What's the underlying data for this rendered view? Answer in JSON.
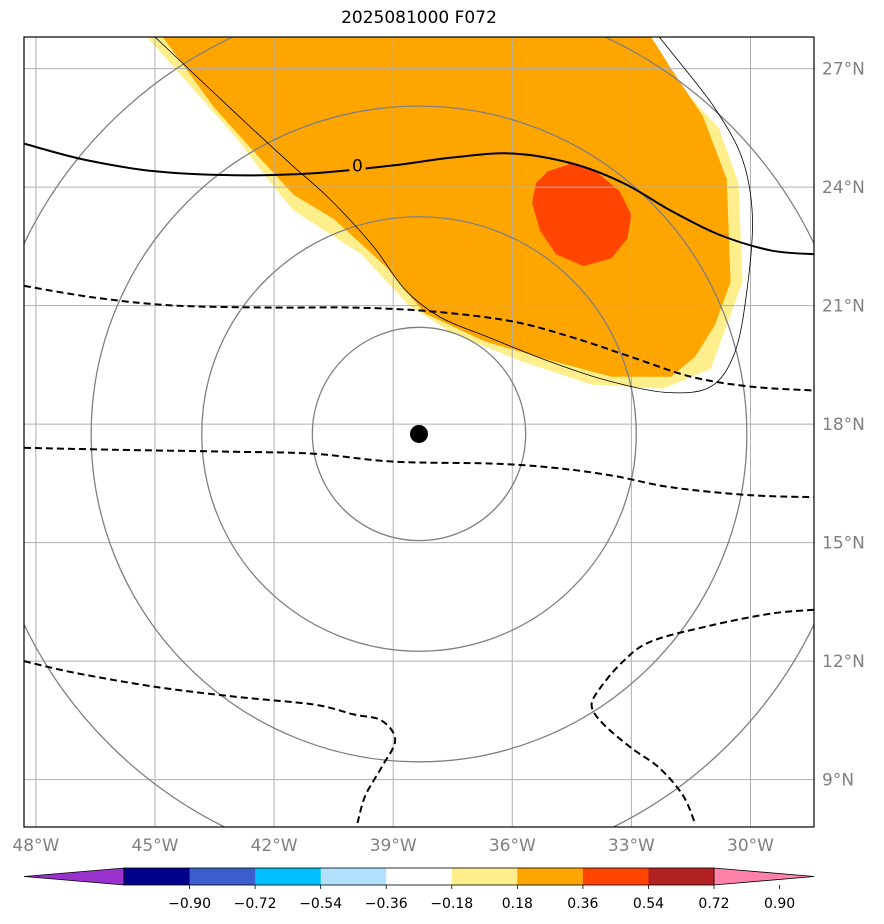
{
  "title": "2025081000 F072",
  "map": {
    "lon_range": [
      -48.3,
      -28.4
    ],
    "lat_range": [
      7.8,
      27.8
    ],
    "lat_ticks": [
      {
        "value": 27,
        "label": "27°N"
      },
      {
        "value": 24,
        "label": "24°N"
      },
      {
        "value": 21,
        "label": "21°N"
      },
      {
        "value": 18,
        "label": "18°N"
      },
      {
        "value": 15,
        "label": "15°N"
      },
      {
        "value": 12,
        "label": "12°N"
      },
      {
        "value": 9,
        "label": "9°N"
      }
    ],
    "lon_ticks": [
      {
        "value": -48,
        "label": "48°W"
      },
      {
        "value": -45,
        "label": "45°W"
      },
      {
        "value": -42,
        "label": "42°W"
      },
      {
        "value": -39,
        "label": "39°W"
      },
      {
        "value": -36,
        "label": "36°W"
      },
      {
        "value": -33,
        "label": "33°W"
      },
      {
        "value": -30,
        "label": "30°W"
      }
    ],
    "storm_center": {
      "lon": -38.35,
      "lat": 17.75
    },
    "range_rings_deg": [
      2.7,
      5.5,
      8.3,
      11.1
    ],
    "contour_zero_label": "0",
    "colors": {
      "grid": "#b0b0b0",
      "ring": "#808080",
      "fill_light": "#ffee8c",
      "fill_orange": "#ffa500",
      "fill_red": "#ff4500"
    },
    "fill_regions": [
      {
        "name": "light",
        "color": "#ffee8c",
        "points": [
          [
            -45.2,
            27.8
          ],
          [
            -36.2,
            27.8
          ],
          [
            -35.5,
            27.8
          ],
          [
            -32.5,
            27.8
          ],
          [
            -32.0,
            26.8
          ],
          [
            -30.8,
            25.5
          ],
          [
            -30.3,
            24.1
          ],
          [
            -30.2,
            21.6
          ],
          [
            -30.6,
            20.5
          ],
          [
            -31.0,
            19.4
          ],
          [
            -32.2,
            18.9
          ],
          [
            -34.0,
            19.0
          ],
          [
            -35.8,
            19.6
          ],
          [
            -37.5,
            20.3
          ],
          [
            -38.6,
            21.0
          ],
          [
            -39.8,
            22.3
          ],
          [
            -41.5,
            23.4
          ],
          [
            -42.0,
            24.0
          ],
          [
            -43.0,
            25.3
          ],
          [
            -45.2,
            27.8
          ]
        ]
      },
      {
        "name": "orange",
        "color": "#ffa500",
        "points": [
          [
            -44.8,
            27.8
          ],
          [
            -32.5,
            27.8
          ],
          [
            -32.0,
            27.0
          ],
          [
            -31.2,
            25.8
          ],
          [
            -30.6,
            24.2
          ],
          [
            -30.5,
            21.6
          ],
          [
            -30.9,
            20.5
          ],
          [
            -31.4,
            19.7
          ],
          [
            -32.0,
            19.2
          ],
          [
            -33.5,
            19.2
          ],
          [
            -35.0,
            19.6
          ],
          [
            -36.7,
            20.1
          ],
          [
            -38.2,
            20.8
          ],
          [
            -39.2,
            22.0
          ],
          [
            -40.5,
            23.2
          ],
          [
            -41.5,
            23.8
          ],
          [
            -42.6,
            25.0
          ],
          [
            -43.5,
            26.0
          ],
          [
            -44.8,
            27.8
          ]
        ]
      },
      {
        "name": "red",
        "color": "#ff4500",
        "points": [
          [
            -35.1,
            24.4
          ],
          [
            -34.5,
            24.6
          ],
          [
            -33.9,
            24.4
          ],
          [
            -33.3,
            23.9
          ],
          [
            -33.0,
            23.3
          ],
          [
            -33.1,
            22.7
          ],
          [
            -33.5,
            22.2
          ],
          [
            -34.2,
            22.0
          ],
          [
            -34.9,
            22.3
          ],
          [
            -35.3,
            22.9
          ],
          [
            -35.5,
            23.6
          ],
          [
            -35.4,
            24.1
          ],
          [
            -35.1,
            24.4
          ]
        ]
      }
    ],
    "outline": [
      [
        -45.0,
        27.8
      ],
      [
        -43.0,
        25.9
      ],
      [
        -41.6,
        24.6
      ],
      [
        -40.6,
        23.7
      ],
      [
        -39.5,
        22.5
      ],
      [
        -38.7,
        21.4
      ],
      [
        -37.8,
        20.7
      ],
      [
        -36.6,
        20.2
      ],
      [
        -35.1,
        19.6
      ],
      [
        -33.6,
        19.1
      ],
      [
        -32.1,
        18.8
      ],
      [
        -31.0,
        18.95
      ],
      [
        -30.4,
        19.8
      ],
      [
        -30.1,
        21.3
      ],
      [
        -29.95,
        23.2
      ],
      [
        -30.2,
        24.7
      ],
      [
        -30.9,
        26.0
      ],
      [
        -31.9,
        27.3
      ],
      [
        -32.3,
        27.8
      ]
    ],
    "zero_contour": [
      [
        -48.3,
        25.1
      ],
      [
        -46.8,
        24.7
      ],
      [
        -45.0,
        24.4
      ],
      [
        -43.0,
        24.3
      ],
      [
        -41.0,
        24.35
      ],
      [
        -39.0,
        24.55
      ],
      [
        -37.5,
        24.75
      ],
      [
        -36.0,
        24.85
      ],
      [
        -34.5,
        24.6
      ],
      [
        -33.2,
        24.1
      ],
      [
        -32.0,
        23.4
      ],
      [
        -30.8,
        22.8
      ],
      [
        -29.5,
        22.4
      ],
      [
        -28.4,
        22.3
      ]
    ],
    "dashed_contours": [
      [
        [
          -48.3,
          21.5
        ],
        [
          -46.5,
          21.2
        ],
        [
          -44.5,
          21.0
        ],
        [
          -42.0,
          20.95
        ],
        [
          -40.0,
          20.95
        ],
        [
          -38.0,
          20.85
        ],
        [
          -36.0,
          20.6
        ],
        [
          -34.5,
          20.2
        ],
        [
          -33.0,
          19.7
        ],
        [
          -31.5,
          19.2
        ],
        [
          -30.0,
          18.95
        ],
        [
          -28.4,
          18.85
        ]
      ],
      [
        [
          -48.3,
          17.4
        ],
        [
          -46.0,
          17.35
        ],
        [
          -43.0,
          17.3
        ],
        [
          -41.0,
          17.25
        ],
        [
          -39.0,
          17.05
        ],
        [
          -36.5,
          17.0
        ],
        [
          -35.0,
          16.9
        ],
        [
          -33.5,
          16.7
        ],
        [
          -32.0,
          16.4
        ],
        [
          -30.0,
          16.2
        ],
        [
          -28.4,
          16.15
        ]
      ],
      [
        [
          -48.3,
          12.0
        ],
        [
          -47.0,
          11.7
        ],
        [
          -45.0,
          11.35
        ],
        [
          -43.0,
          11.1
        ],
        [
          -41.0,
          10.9
        ],
        [
          -40.0,
          10.65
        ],
        [
          -39.3,
          10.5
        ],
        [
          -38.95,
          10.0
        ],
        [
          -39.3,
          9.3
        ],
        [
          -39.7,
          8.6
        ],
        [
          -39.9,
          7.9
        ]
      ],
      [
        [
          -28.4,
          13.3
        ],
        [
          -29.5,
          13.2
        ],
        [
          -31.0,
          12.9
        ],
        [
          -32.5,
          12.5
        ],
        [
          -33.2,
          12.0
        ],
        [
          -33.8,
          11.3
        ],
        [
          -34.0,
          10.85
        ],
        [
          -33.7,
          10.4
        ],
        [
          -33.0,
          9.8
        ],
        [
          -32.3,
          9.3
        ],
        [
          -31.7,
          8.6
        ],
        [
          -31.4,
          7.9
        ]
      ]
    ]
  },
  "colorbar": {
    "colors": [
      "#9932cc",
      "#00008b",
      "#3a5fcd",
      "#00bfff",
      "#b0e2ff",
      "#ffffff",
      "#ffee8c",
      "#ffa500",
      "#ff4500",
      "#b22222",
      "#ff82ab"
    ],
    "tick_labels": [
      "−0.90",
      "−0.72",
      "−0.54",
      "−0.36",
      "−0.18",
      "0.18",
      "0.36",
      "0.54",
      "0.72",
      "0.90"
    ]
  }
}
